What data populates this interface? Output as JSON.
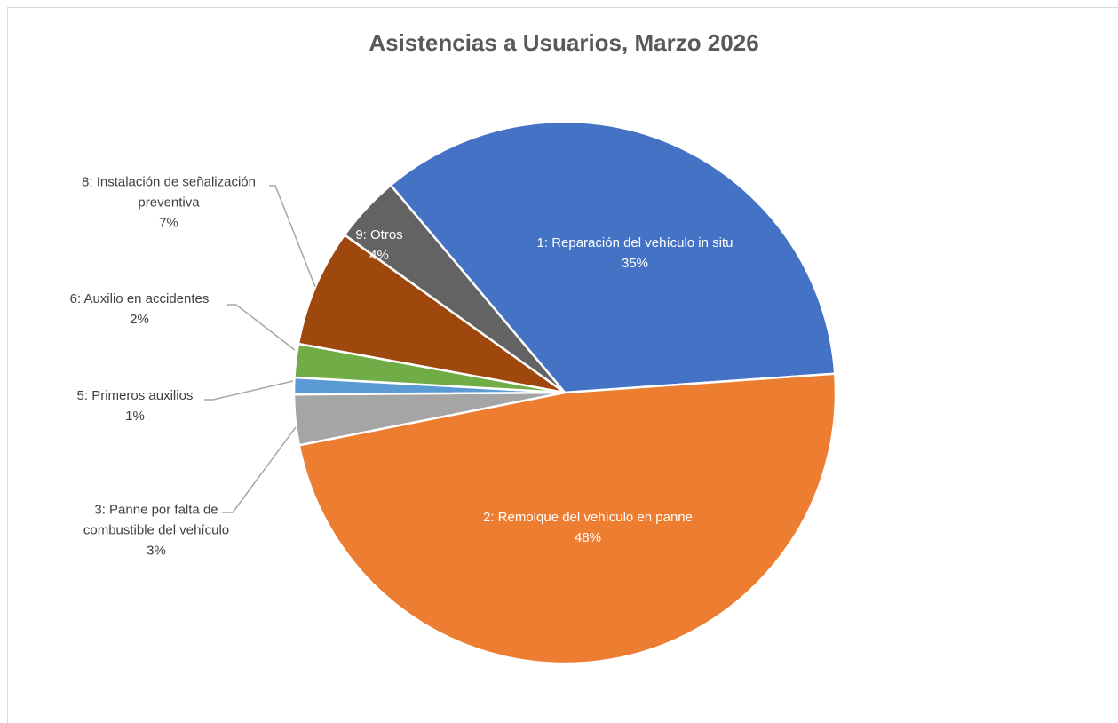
{
  "chart_data": {
    "type": "pie",
    "title": "Asistencias a Usuarios, Marzo 2026",
    "categories": [
      "1: Reparación del vehículo in situ",
      "2: Remolque del vehículo en panne",
      "3: Panne por falta de combustible del vehículo",
      "5: Primeros auxilios",
      "6: Auxilio en accidentes",
      "8: Instalación de señalización preventiva",
      "9: Otros"
    ],
    "values": [
      35,
      48,
      3,
      1,
      2,
      7,
      4
    ],
    "value_labels": [
      "35%",
      "48%",
      "3%",
      "1%",
      "2%",
      "7%",
      "4%"
    ],
    "colors": [
      "#4472c4",
      "#ed7d31",
      "#a5a5a5",
      "#5b9bd5",
      "#70ad47",
      "#9e480e",
      "#636363"
    ]
  }
}
